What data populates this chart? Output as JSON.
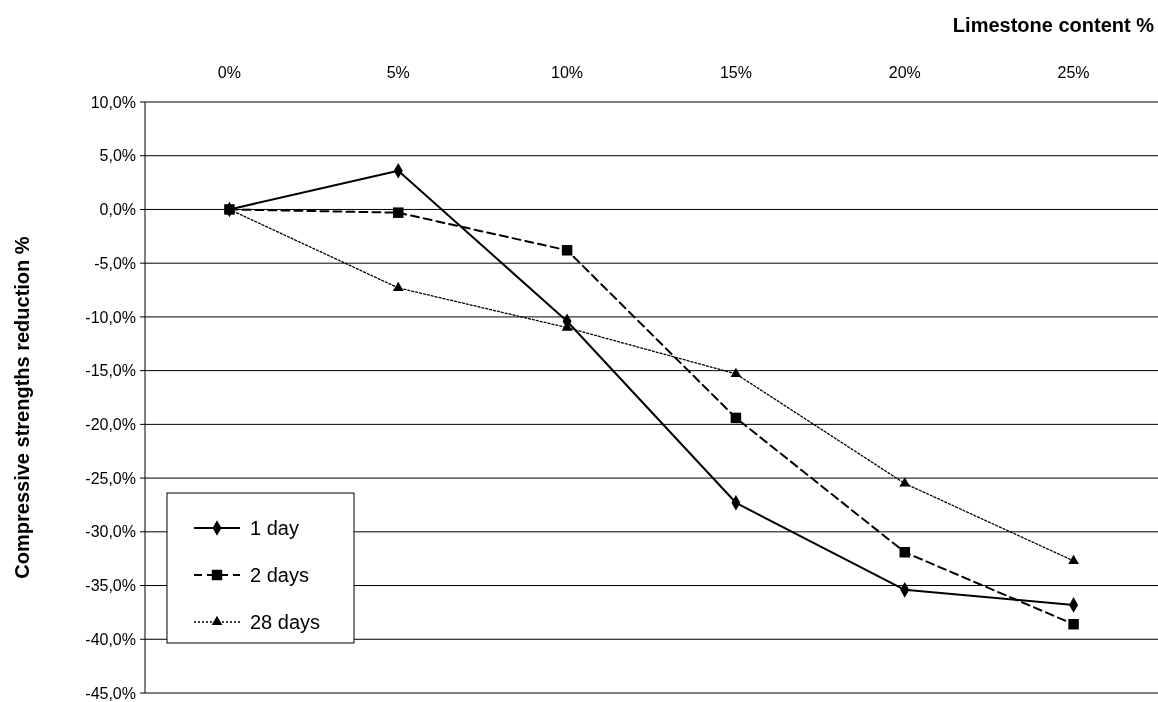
{
  "chart_data": {
    "type": "line",
    "xlabel": "Limestone content %",
    "ylabel": "Compressive strengths reduction %",
    "categories": [
      "0%",
      "5%",
      "10%",
      "15%",
      "20%",
      "25%"
    ],
    "series": [
      {
        "name": "1 day",
        "color": "#000000",
        "line_style": "solid",
        "marker": "diamond",
        "values": [
          0,
          3.6,
          -10.4,
          -27.3,
          -35.4,
          -36.8
        ]
      },
      {
        "name": "2 days",
        "color": "#000000",
        "line_style": "dashed",
        "marker": "square",
        "values": [
          0,
          -0.3,
          -3.8,
          -19.4,
          -31.9,
          -38.6
        ]
      },
      {
        "name": "28 days",
        "color": "#000000",
        "line_style": "dotted",
        "marker": "triangle",
        "values": [
          0,
          -7.3,
          -11.0,
          -15.3,
          -25.5,
          -32.7
        ]
      }
    ],
    "ylim": [
      -45,
      10
    ],
    "yticks": [
      {
        "value": 10,
        "label": "10,0%"
      },
      {
        "value": 5,
        "label": "5,0%"
      },
      {
        "value": 0,
        "label": "0,0%"
      },
      {
        "value": -5,
        "label": "-5,0%"
      },
      {
        "value": -10,
        "label": "-10,0%"
      },
      {
        "value": -15,
        "label": "-15,0%"
      },
      {
        "value": -20,
        "label": "-20,0%"
      },
      {
        "value": -25,
        "label": "-25,0%"
      },
      {
        "value": -30,
        "label": "-30,0%"
      },
      {
        "value": -35,
        "label": "-35,0%"
      },
      {
        "value": -40,
        "label": "-40,0%"
      },
      {
        "value": -45,
        "label": "-45,0%"
      }
    ],
    "grid": "y",
    "legend": "bottom left"
  }
}
